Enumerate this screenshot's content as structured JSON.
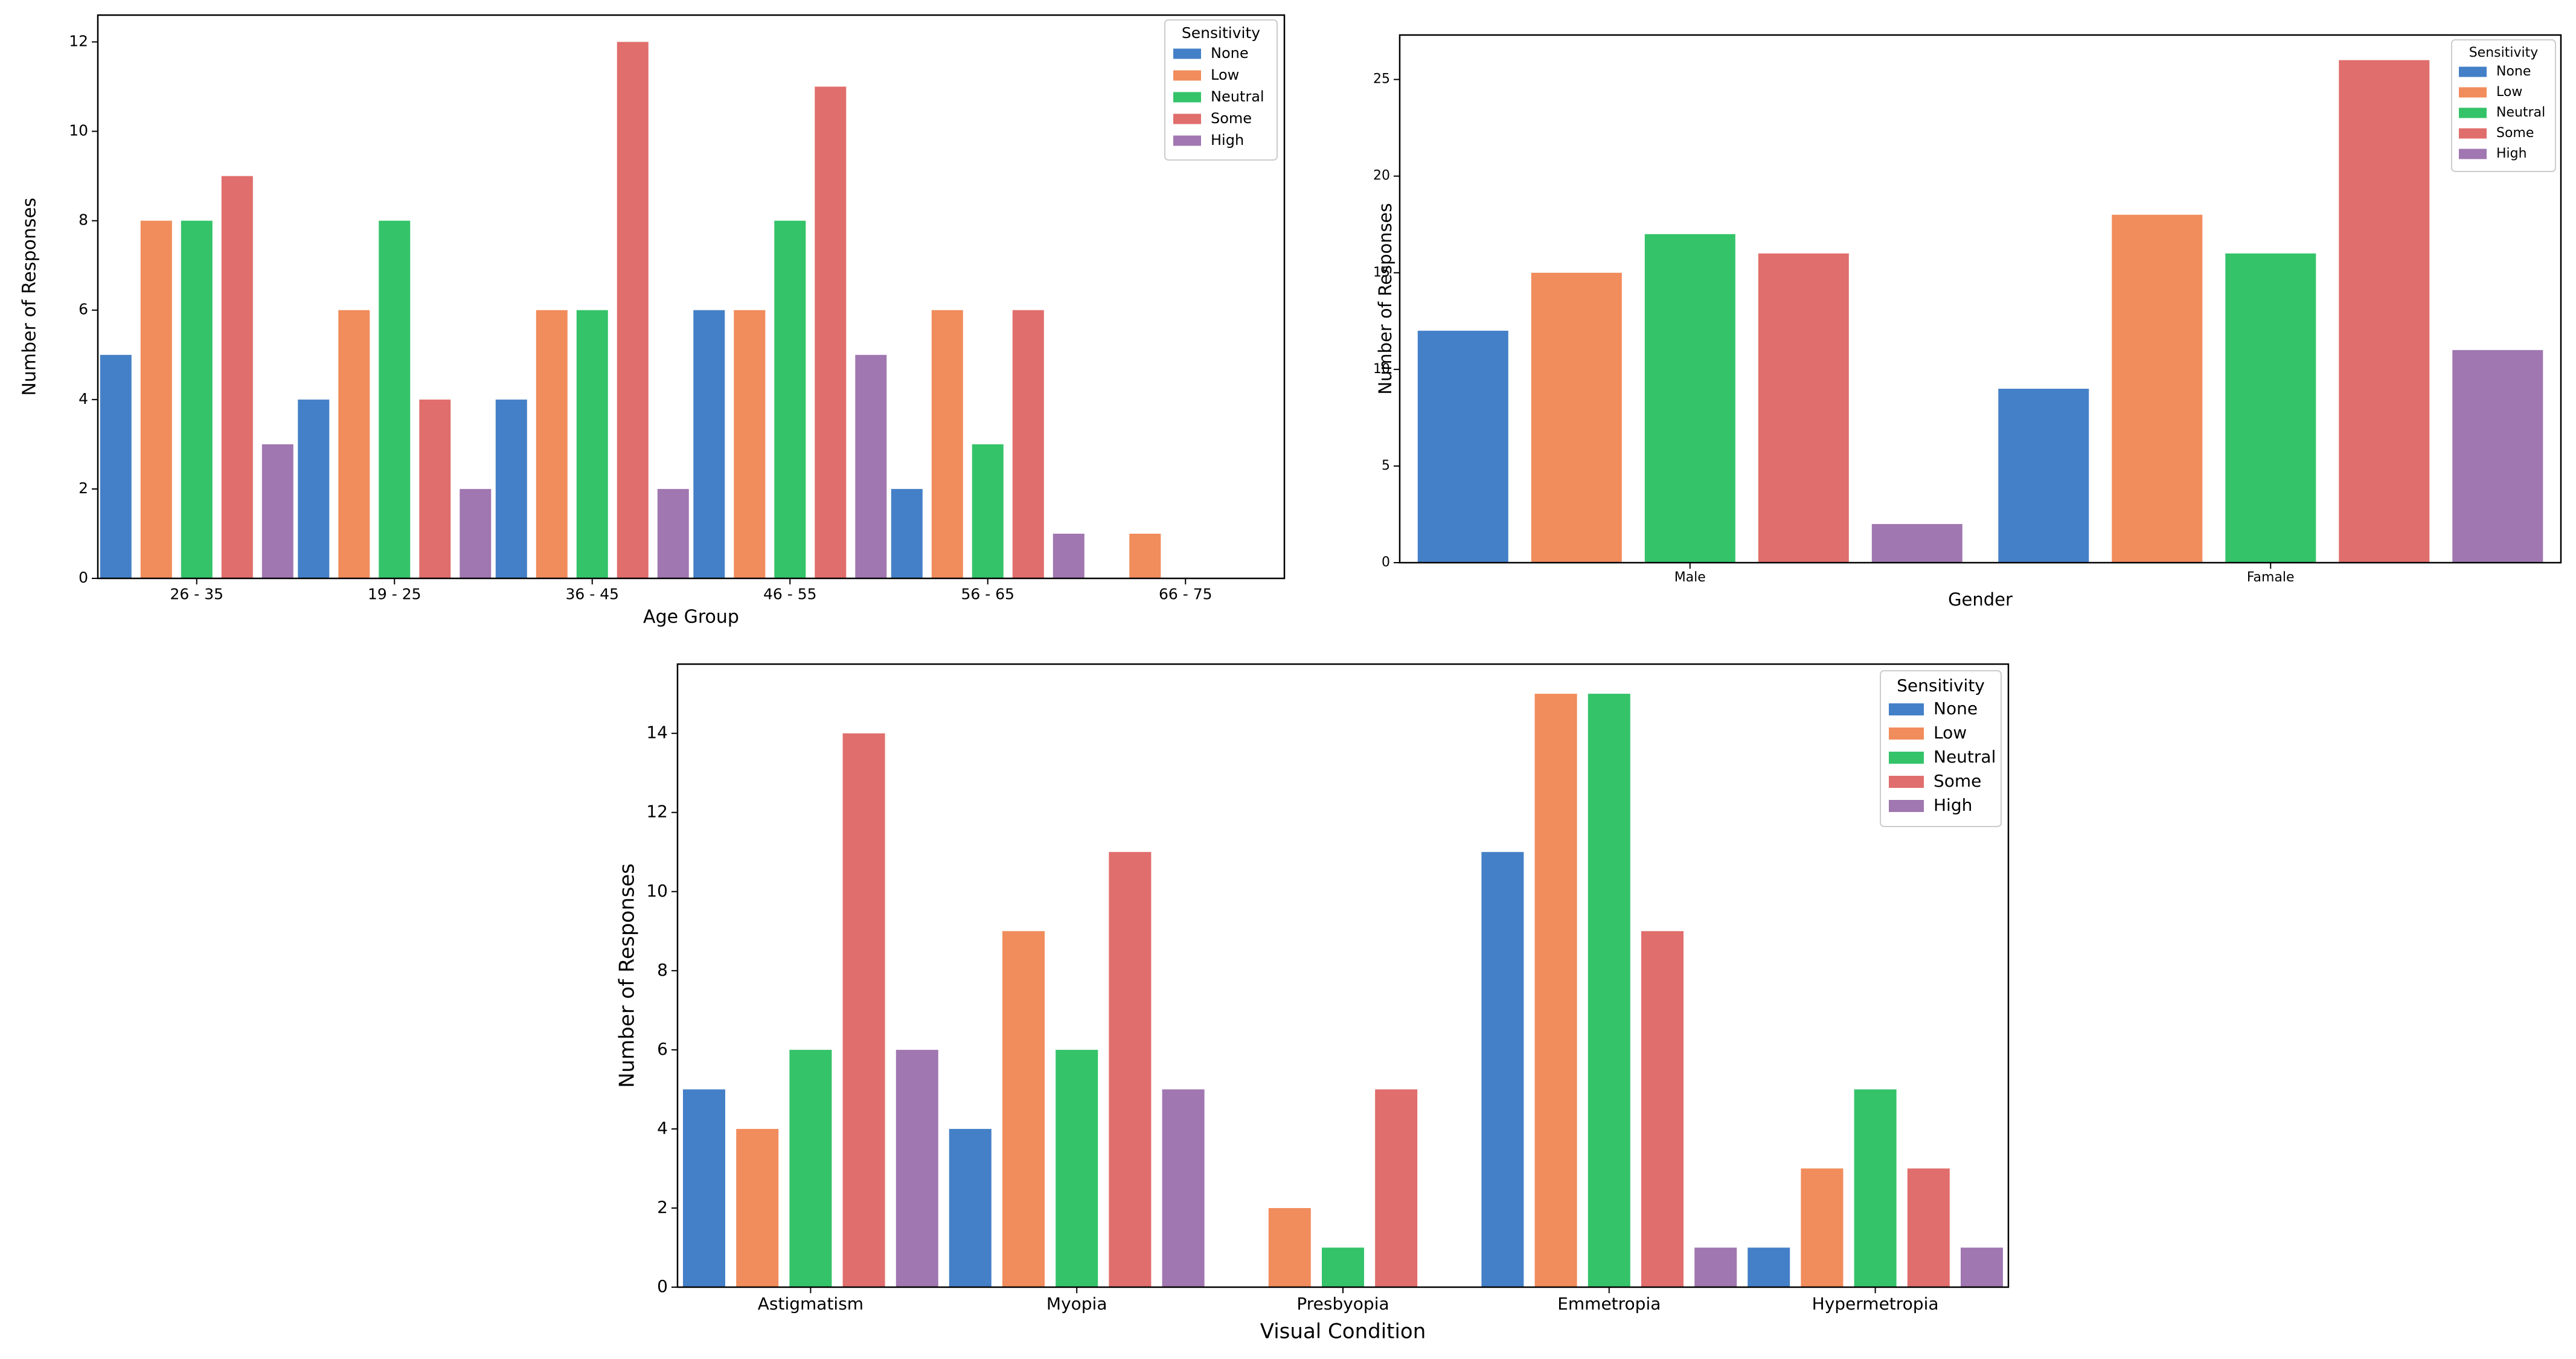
{
  "colors": {
    "None": "#4480c7",
    "Low": "#f18c5c",
    "Neutral": "#34c369",
    "Some": "#e06e6c",
    "High": "#a077b1"
  },
  "chart_data": [
    {
      "type": "bar",
      "title": "",
      "xlabel": "Age Group",
      "ylabel": "Number of Responses",
      "categories": [
        "26 - 35",
        "19 - 25",
        "36 - 45",
        "46 - 55",
        "56 - 65",
        "66 - 75"
      ],
      "series": [
        {
          "name": "None",
          "values": [
            5,
            4,
            4,
            6,
            2,
            0
          ]
        },
        {
          "name": "Low",
          "values": [
            8,
            6,
            6,
            6,
            6,
            1
          ]
        },
        {
          "name": "Neutral",
          "values": [
            8,
            8,
            6,
            8,
            3,
            0
          ]
        },
        {
          "name": "Some",
          "values": [
            9,
            4,
            12,
            11,
            6,
            0
          ]
        },
        {
          "name": "High",
          "values": [
            3,
            2,
            2,
            5,
            1,
            0
          ]
        }
      ],
      "ylim": [
        0,
        12.6
      ],
      "yticks": [
        0,
        2,
        4,
        6,
        8,
        10,
        12
      ],
      "grid": false,
      "legend": {
        "title": "Sensitivity",
        "position": "top-right"
      }
    },
    {
      "type": "bar",
      "title": "",
      "xlabel": "Gender",
      "ylabel": "Number of Responses",
      "categories": [
        "Male",
        "Famale"
      ],
      "series": [
        {
          "name": "None",
          "values": [
            12,
            9
          ]
        },
        {
          "name": "Low",
          "values": [
            15,
            18
          ]
        },
        {
          "name": "Neutral",
          "values": [
            17,
            16
          ]
        },
        {
          "name": "Some",
          "values": [
            16,
            26
          ]
        },
        {
          "name": "High",
          "values": [
            2,
            11
          ]
        }
      ],
      "ylim": [
        0,
        27.3
      ],
      "yticks": [
        0,
        5,
        10,
        15,
        20,
        25
      ],
      "grid": false,
      "legend": {
        "title": "Sensitivity",
        "position": "top-right"
      }
    },
    {
      "type": "bar",
      "title": "",
      "xlabel": "Visual Condition",
      "ylabel": "Number of Responses",
      "categories": [
        "Astigmatism",
        "Myopia",
        "Presbyopia",
        "Emmetropia",
        "Hypermetropia"
      ],
      "series": [
        {
          "name": "None",
          "values": [
            5,
            4,
            0,
            11,
            1
          ]
        },
        {
          "name": "Low",
          "values": [
            4,
            9,
            2,
            15,
            3
          ]
        },
        {
          "name": "Neutral",
          "values": [
            6,
            6,
            1,
            15,
            5
          ]
        },
        {
          "name": "Some",
          "values": [
            14,
            11,
            5,
            9,
            3
          ]
        },
        {
          "name": "High",
          "values": [
            6,
            5,
            0,
            1,
            1
          ]
        }
      ],
      "ylim": [
        0,
        15.75
      ],
      "yticks": [
        0,
        2,
        4,
        6,
        8,
        10,
        12,
        14
      ],
      "grid": false,
      "legend": {
        "title": "Sensitivity",
        "position": "top-right"
      }
    }
  ]
}
